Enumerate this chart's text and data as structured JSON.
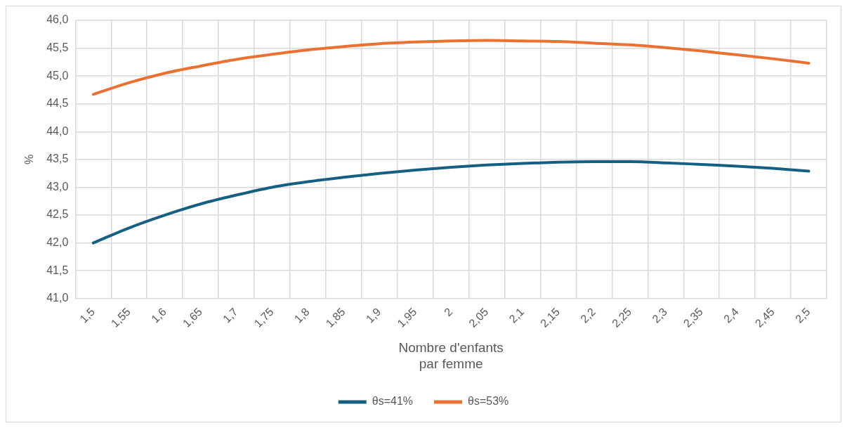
{
  "chart_data": {
    "type": "line",
    "xlabel": "Nombre d'enfants\npar femme",
    "ylabel": "%",
    "categories": [
      "1,5",
      "1,55",
      "1,6",
      "1,65",
      "1,7",
      "1,75",
      "1,8",
      "1,85",
      "1,9",
      "1,95",
      "2",
      "2,05",
      "2,1",
      "2,15",
      "2,2",
      "2,25",
      "2,3",
      "2,35",
      "2,4",
      "2,45",
      "2,5"
    ],
    "series": [
      {
        "name": "θs=41%",
        "color": "#156082",
        "values": [
          42.0,
          42.27,
          42.5,
          42.7,
          42.86,
          43.0,
          43.1,
          43.18,
          43.25,
          43.31,
          43.36,
          43.4,
          43.43,
          43.45,
          43.46,
          43.46,
          43.44,
          43.41,
          43.38,
          43.34,
          43.29
        ]
      },
      {
        "name": "θs=53%",
        "color": "#e97132",
        "values": [
          44.67,
          44.88,
          45.05,
          45.18,
          45.3,
          45.39,
          45.47,
          45.53,
          45.58,
          45.61,
          45.63,
          45.64,
          45.63,
          45.62,
          45.59,
          45.56,
          45.51,
          45.45,
          45.38,
          45.31,
          45.23
        ]
      }
    ],
    "ylim": [
      41,
      46
    ],
    "yticks": [
      {
        "value": 41,
        "label": "41,0"
      },
      {
        "value": 41.5,
        "label": "41,5"
      },
      {
        "value": 42,
        "label": "42,0"
      },
      {
        "value": 42.5,
        "label": "42,5"
      },
      {
        "value": 43,
        "label": "43,0"
      },
      {
        "value": 43.5,
        "label": "43,5"
      },
      {
        "value": 44,
        "label": "44,0"
      },
      {
        "value": 44.5,
        "label": "44,5"
      },
      {
        "value": 45,
        "label": "45,0"
      },
      {
        "value": 45.5,
        "label": "45,5"
      },
      {
        "value": 46,
        "label": "46,0"
      }
    ],
    "grid": true,
    "legend": "bottom",
    "marker": "none",
    "line_style": "solid"
  }
}
